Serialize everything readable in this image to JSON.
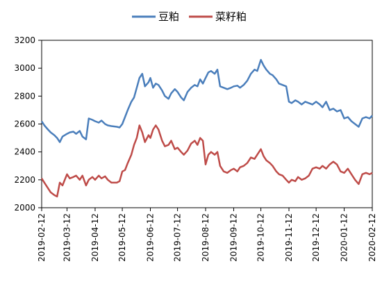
{
  "chart_data": {
    "type": "line",
    "title": "",
    "xlabel": "",
    "ylabel": "",
    "ylim": [
      2000,
      3200
    ],
    "yticks": [
      2000,
      2200,
      2400,
      2600,
      2800,
      3000,
      3200
    ],
    "xlim": [
      "2019-02-12",
      "2020-02-12"
    ],
    "xticks": [
      "2019-02-12",
      "2019-03-12",
      "2019-04-12",
      "2019-05-12",
      "2019-06-12",
      "2019-07-12",
      "2019-08-12",
      "2019-09-12",
      "2019-10-12",
      "2019-11-12",
      "2019-12-12",
      "2020-01-12",
      "2020-02-12"
    ],
    "grid": false,
    "legend_position": "top-center",
    "series": [
      {
        "name": "豆粕",
        "color": "#4a7ebb",
        "points": [
          [
            "2019-02-12",
            2620
          ],
          [
            "2019-02-15",
            2590
          ],
          [
            "2019-02-19",
            2560
          ],
          [
            "2019-02-22",
            2540
          ],
          [
            "2019-02-26",
            2520
          ],
          [
            "2019-03-01",
            2500
          ],
          [
            "2019-03-04",
            2470
          ],
          [
            "2019-03-07",
            2510
          ],
          [
            "2019-03-12",
            2530
          ],
          [
            "2019-03-15",
            2540
          ],
          [
            "2019-03-19",
            2545
          ],
          [
            "2019-03-22",
            2530
          ],
          [
            "2019-03-26",
            2550
          ],
          [
            "2019-03-29",
            2510
          ],
          [
            "2019-04-02",
            2490
          ],
          [
            "2019-04-05",
            2640
          ],
          [
            "2019-04-09",
            2630
          ],
          [
            "2019-04-12",
            2620
          ],
          [
            "2019-04-16",
            2610
          ],
          [
            "2019-04-19",
            2625
          ],
          [
            "2019-04-23",
            2600
          ],
          [
            "2019-04-26",
            2590
          ],
          [
            "2019-04-30",
            2585
          ],
          [
            "2019-05-06",
            2580
          ],
          [
            "2019-05-09",
            2575
          ],
          [
            "2019-05-12",
            2600
          ],
          [
            "2019-05-15",
            2650
          ],
          [
            "2019-05-18",
            2700
          ],
          [
            "2019-05-22",
            2760
          ],
          [
            "2019-05-25",
            2790
          ],
          [
            "2019-05-28",
            2860
          ],
          [
            "2019-05-31",
            2930
          ],
          [
            "2019-06-03",
            2960
          ],
          [
            "2019-06-06",
            2870
          ],
          [
            "2019-06-10",
            2900
          ],
          [
            "2019-06-12",
            2930
          ],
          [
            "2019-06-15",
            2860
          ],
          [
            "2019-06-18",
            2890
          ],
          [
            "2019-06-21",
            2880
          ],
          [
            "2019-06-25",
            2840
          ],
          [
            "2019-06-28",
            2800
          ],
          [
            "2019-07-02",
            2780
          ],
          [
            "2019-07-05",
            2820
          ],
          [
            "2019-07-09",
            2850
          ],
          [
            "2019-07-12",
            2830
          ],
          [
            "2019-07-16",
            2790
          ],
          [
            "2019-07-19",
            2770
          ],
          [
            "2019-07-23",
            2830
          ],
          [
            "2019-07-27",
            2860
          ],
          [
            "2019-07-31",
            2880
          ],
          [
            "2019-08-03",
            2870
          ],
          [
            "2019-08-06",
            2920
          ],
          [
            "2019-08-09",
            2890
          ],
          [
            "2019-08-12",
            2930
          ],
          [
            "2019-08-15",
            2970
          ],
          [
            "2019-08-18",
            2980
          ],
          [
            "2019-08-22",
            2960
          ],
          [
            "2019-08-25",
            2990
          ],
          [
            "2019-08-28",
            2870
          ],
          [
            "2019-09-01",
            2860
          ],
          [
            "2019-09-05",
            2850
          ],
          [
            "2019-09-09",
            2860
          ],
          [
            "2019-09-12",
            2870
          ],
          [
            "2019-09-16",
            2875
          ],
          [
            "2019-09-19",
            2860
          ],
          [
            "2019-09-23",
            2880
          ],
          [
            "2019-09-27",
            2910
          ],
          [
            "2019-10-01",
            2960
          ],
          [
            "2019-10-05",
            2990
          ],
          [
            "2019-10-08",
            2980
          ],
          [
            "2019-10-12",
            3060
          ],
          [
            "2019-10-15",
            3020
          ],
          [
            "2019-10-18",
            2990
          ],
          [
            "2019-10-22",
            2960
          ],
          [
            "2019-10-25",
            2950
          ],
          [
            "2019-10-29",
            2920
          ],
          [
            "2019-11-01",
            2890
          ],
          [
            "2019-11-05",
            2880
          ],
          [
            "2019-11-09",
            2870
          ],
          [
            "2019-11-12",
            2760
          ],
          [
            "2019-11-15",
            2750
          ],
          [
            "2019-11-19",
            2770
          ],
          [
            "2019-11-22",
            2760
          ],
          [
            "2019-11-26",
            2740
          ],
          [
            "2019-11-30",
            2760
          ],
          [
            "2019-12-04",
            2750
          ],
          [
            "2019-12-08",
            2740
          ],
          [
            "2019-12-12",
            2760
          ],
          [
            "2019-12-16",
            2740
          ],
          [
            "2019-12-19",
            2720
          ],
          [
            "2019-12-23",
            2760
          ],
          [
            "2019-12-27",
            2700
          ],
          [
            "2019-12-31",
            2710
          ],
          [
            "2020-01-04",
            2690
          ],
          [
            "2020-01-08",
            2700
          ],
          [
            "2020-01-12",
            2640
          ],
          [
            "2020-01-16",
            2650
          ],
          [
            "2020-01-20",
            2620
          ],
          [
            "2020-01-24",
            2600
          ],
          [
            "2020-01-28",
            2580
          ],
          [
            "2020-02-01",
            2640
          ],
          [
            "2020-02-05",
            2650
          ],
          [
            "2020-02-09",
            2640
          ],
          [
            "2020-02-12",
            2660
          ]
        ]
      },
      {
        "name": "菜籽粕",
        "color": "#be4b48",
        "points": [
          [
            "2019-02-12",
            2210
          ],
          [
            "2019-02-15",
            2180
          ],
          [
            "2019-02-19",
            2140
          ],
          [
            "2019-02-22",
            2110
          ],
          [
            "2019-02-26",
            2090
          ],
          [
            "2019-03-01",
            2080
          ],
          [
            "2019-03-04",
            2180
          ],
          [
            "2019-03-07",
            2160
          ],
          [
            "2019-03-12",
            2240
          ],
          [
            "2019-03-15",
            2210
          ],
          [
            "2019-03-19",
            2220
          ],
          [
            "2019-03-22",
            2230
          ],
          [
            "2019-03-26",
            2200
          ],
          [
            "2019-03-29",
            2230
          ],
          [
            "2019-04-02",
            2160
          ],
          [
            "2019-04-05",
            2200
          ],
          [
            "2019-04-09",
            2220
          ],
          [
            "2019-04-12",
            2200
          ],
          [
            "2019-04-16",
            2230
          ],
          [
            "2019-04-19",
            2210
          ],
          [
            "2019-04-23",
            2225
          ],
          [
            "2019-04-26",
            2200
          ],
          [
            "2019-04-30",
            2180
          ],
          [
            "2019-05-06",
            2180
          ],
          [
            "2019-05-09",
            2190
          ],
          [
            "2019-05-12",
            2260
          ],
          [
            "2019-05-15",
            2270
          ],
          [
            "2019-05-18",
            2320
          ],
          [
            "2019-05-22",
            2380
          ],
          [
            "2019-05-25",
            2450
          ],
          [
            "2019-05-28",
            2500
          ],
          [
            "2019-05-31",
            2590
          ],
          [
            "2019-06-03",
            2540
          ],
          [
            "2019-06-06",
            2470
          ],
          [
            "2019-06-10",
            2520
          ],
          [
            "2019-06-12",
            2500
          ],
          [
            "2019-06-15",
            2560
          ],
          [
            "2019-06-18",
            2590
          ],
          [
            "2019-06-21",
            2560
          ],
          [
            "2019-06-25",
            2480
          ],
          [
            "2019-06-28",
            2440
          ],
          [
            "2019-07-02",
            2450
          ],
          [
            "2019-07-05",
            2480
          ],
          [
            "2019-07-09",
            2420
          ],
          [
            "2019-07-12",
            2430
          ],
          [
            "2019-07-16",
            2400
          ],
          [
            "2019-07-19",
            2380
          ],
          [
            "2019-07-23",
            2410
          ],
          [
            "2019-07-27",
            2460
          ],
          [
            "2019-07-31",
            2480
          ],
          [
            "2019-08-03",
            2450
          ],
          [
            "2019-08-06",
            2500
          ],
          [
            "2019-08-09",
            2480
          ],
          [
            "2019-08-12",
            2310
          ],
          [
            "2019-08-15",
            2380
          ],
          [
            "2019-08-18",
            2400
          ],
          [
            "2019-08-22",
            2380
          ],
          [
            "2019-08-25",
            2400
          ],
          [
            "2019-08-28",
            2300
          ],
          [
            "2019-09-01",
            2260
          ],
          [
            "2019-09-05",
            2250
          ],
          [
            "2019-09-09",
            2270
          ],
          [
            "2019-09-12",
            2280
          ],
          [
            "2019-09-16",
            2260
          ],
          [
            "2019-09-19",
            2290
          ],
          [
            "2019-09-23",
            2300
          ],
          [
            "2019-09-27",
            2320
          ],
          [
            "2019-10-01",
            2360
          ],
          [
            "2019-10-05",
            2350
          ],
          [
            "2019-10-08",
            2380
          ],
          [
            "2019-10-12",
            2420
          ],
          [
            "2019-10-15",
            2370
          ],
          [
            "2019-10-18",
            2340
          ],
          [
            "2019-10-22",
            2320
          ],
          [
            "2019-10-25",
            2300
          ],
          [
            "2019-10-29",
            2260
          ],
          [
            "2019-11-01",
            2240
          ],
          [
            "2019-11-05",
            2230
          ],
          [
            "2019-11-09",
            2200
          ],
          [
            "2019-11-12",
            2180
          ],
          [
            "2019-11-15",
            2200
          ],
          [
            "2019-11-19",
            2190
          ],
          [
            "2019-11-22",
            2220
          ],
          [
            "2019-11-26",
            2200
          ],
          [
            "2019-11-30",
            2210
          ],
          [
            "2019-12-04",
            2230
          ],
          [
            "2019-12-08",
            2280
          ],
          [
            "2019-12-12",
            2290
          ],
          [
            "2019-12-16",
            2280
          ],
          [
            "2019-12-19",
            2300
          ],
          [
            "2019-12-23",
            2280
          ],
          [
            "2019-12-27",
            2310
          ],
          [
            "2019-12-31",
            2330
          ],
          [
            "2020-01-04",
            2310
          ],
          [
            "2020-01-08",
            2260
          ],
          [
            "2020-01-12",
            2250
          ],
          [
            "2020-01-16",
            2280
          ],
          [
            "2020-01-20",
            2240
          ],
          [
            "2020-01-24",
            2200
          ],
          [
            "2020-01-28",
            2170
          ],
          [
            "2020-02-01",
            2240
          ],
          [
            "2020-02-05",
            2250
          ],
          [
            "2020-02-09",
            2240
          ],
          [
            "2020-02-12",
            2250
          ]
        ]
      }
    ]
  }
}
